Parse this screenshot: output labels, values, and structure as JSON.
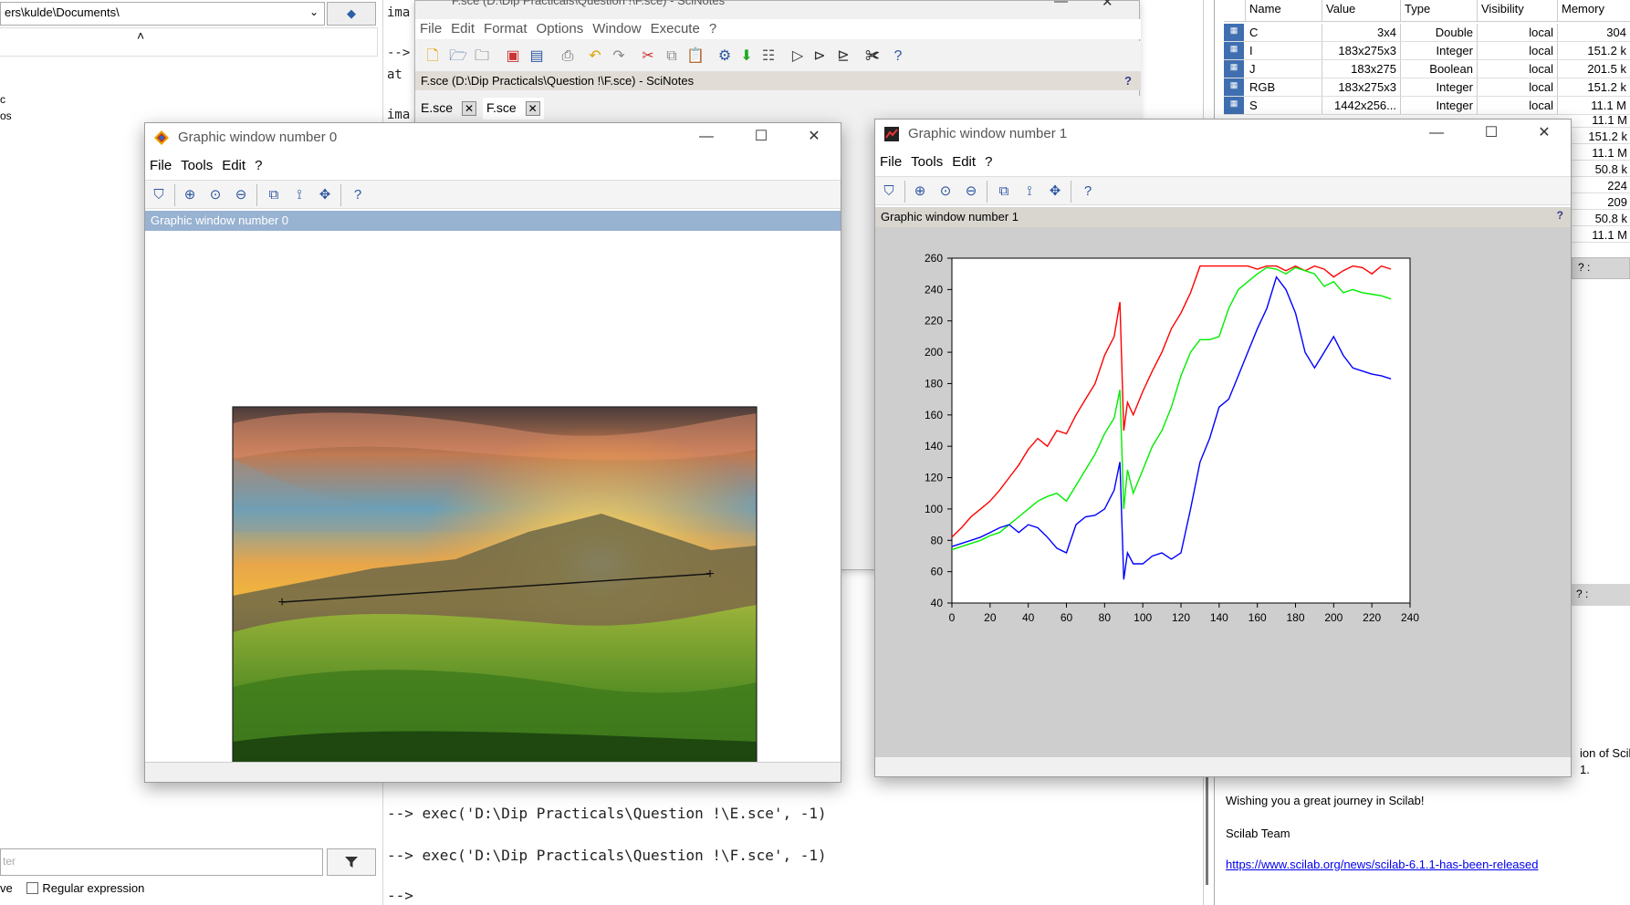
{
  "file_browser": {
    "path": "ers\\kulde\\Documents\\",
    "tree_fragments": [
      "c",
      "os"
    ],
    "filter_placeholder": "ter",
    "case_label_fragment": "ve",
    "regex_label": "Regular expression"
  },
  "console": {
    "top_lines": [
      "ima",
      "-->",
      "at",
      "",
      "ima"
    ],
    "lines": [
      "--> exec('D:\\Dip Practicals\\Question !\\E.sce', -1)",
      "--> exec('D:\\Dip Practicals\\Question !\\F.sce', -1)",
      "-->"
    ]
  },
  "scinotes": {
    "window_title": "F.sce (D:\\Dip Practicals\\Question !\\F.sce) - SciNotes",
    "menu": [
      "File",
      "Edit",
      "Format",
      "Options",
      "Window",
      "Execute",
      "?"
    ],
    "titlebar": "F.sce (D:\\Dip Practicals\\Question !\\F.sce) - SciNotes",
    "help_mark": "?",
    "tabs": [
      "E.sce",
      "F.sce"
    ]
  },
  "variable_browser": {
    "columns": [
      "Name",
      "Value",
      "Type",
      "Visibility",
      "Memory"
    ],
    "rows": [
      {
        "name": "C",
        "value": "3x4",
        "type": "Double",
        "visibility": "local",
        "memory": "304"
      },
      {
        "name": "I",
        "value": "183x275x3",
        "type": "Integer",
        "visibility": "local",
        "memory": "151.2 k"
      },
      {
        "name": "J",
        "value": "183x275",
        "type": "Boolean",
        "visibility": "local",
        "memory": "201.5 k"
      },
      {
        "name": "RGB",
        "value": "183x275x3",
        "type": "Integer",
        "visibility": "local",
        "memory": "151.2 k"
      },
      {
        "name": "S",
        "value": "1442x256...",
        "type": "Integer",
        "visibility": "local",
        "memory": "11.1 M"
      }
    ],
    "hidden_memory": [
      "11.1 M",
      "151.2 k",
      "11.1 M",
      "50.8 k",
      "224",
      "209",
      "50.8 k",
      "11.1 M"
    ],
    "bottom_marks": "? :"
  },
  "news_feed": {
    "fragment1": "ion of Scila",
    "fragment2": "1.",
    "wish": "Wishing you a great journey in Scilab!",
    "signature": "Scilab Team",
    "link": "https://www.scilab.org/news/scilab-6.1.1-has-been-released",
    "titlebar_marks": "? :"
  },
  "graphic_window_0": {
    "title": "Graphic window number 0",
    "menu": [
      "File",
      "Tools",
      "Edit",
      "?"
    ],
    "info": "Graphic window number 0",
    "image_alt": "sunset over grassy hills",
    "profile_line_marker": "+"
  },
  "graphic_window_1": {
    "title": "Graphic window number 1",
    "menu": [
      "File",
      "Tools",
      "Edit",
      "?"
    ],
    "info": "Graphic window number 1",
    "help_mark": "?"
  },
  "chart_data": {
    "type": "line",
    "title": "",
    "xlabel": "",
    "ylabel": "",
    "xlim": [
      0,
      240
    ],
    "ylim": [
      40,
      260
    ],
    "x_ticks": [
      "0",
      "20",
      "40",
      "60",
      "80",
      "100",
      "120",
      "140",
      "160",
      "180",
      "200",
      "220",
      "240"
    ],
    "y_ticks": [
      "40",
      "60",
      "80",
      "100",
      "120",
      "140",
      "160",
      "180",
      "200",
      "220",
      "240",
      "260"
    ],
    "grid": false,
    "series": [
      {
        "color": "#ff0000",
        "x": [
          0,
          5,
          10,
          15,
          20,
          25,
          30,
          35,
          40,
          45,
          50,
          55,
          60,
          65,
          70,
          75,
          80,
          85,
          88,
          90,
          92,
          95,
          100,
          105,
          110,
          115,
          120,
          125,
          130,
          135,
          140,
          145,
          150,
          155,
          160,
          165,
          170,
          175,
          180,
          185,
          190,
          195,
          200,
          205,
          210,
          215,
          220,
          225,
          230
        ],
        "y": [
          82,
          88,
          95,
          100,
          105,
          112,
          120,
          128,
          138,
          145,
          140,
          150,
          148,
          160,
          170,
          180,
          198,
          210,
          232,
          150,
          168,
          160,
          175,
          188,
          200,
          215,
          225,
          238,
          255,
          255,
          255,
          255,
          255,
          255,
          253,
          255,
          255,
          252,
          255,
          252,
          255,
          253,
          248,
          252,
          255,
          254,
          250,
          255,
          253
        ]
      },
      {
        "color": "#00ee00",
        "x": [
          0,
          5,
          10,
          15,
          20,
          25,
          30,
          35,
          40,
          45,
          50,
          55,
          60,
          65,
          70,
          75,
          80,
          85,
          88,
          90,
          92,
          95,
          100,
          105,
          110,
          115,
          120,
          125,
          130,
          135,
          140,
          145,
          150,
          155,
          160,
          165,
          170,
          175,
          180,
          185,
          190,
          195,
          200,
          205,
          210,
          215,
          220,
          225,
          230
        ],
        "y": [
          74,
          76,
          78,
          80,
          83,
          85,
          90,
          95,
          100,
          105,
          108,
          110,
          105,
          115,
          125,
          135,
          148,
          158,
          176,
          100,
          125,
          110,
          125,
          140,
          150,
          165,
          185,
          200,
          208,
          208,
          210,
          228,
          240,
          245,
          250,
          254,
          253,
          250,
          254,
          252,
          250,
          242,
          245,
          238,
          240,
          238,
          237,
          236,
          234
        ]
      },
      {
        "color": "#0000ff",
        "x": [
          0,
          5,
          10,
          15,
          20,
          25,
          30,
          35,
          40,
          45,
          50,
          55,
          60,
          65,
          70,
          75,
          80,
          85,
          88,
          90,
          92,
          95,
          100,
          105,
          110,
          115,
          120,
          125,
          130,
          135,
          140,
          145,
          150,
          155,
          160,
          165,
          170,
          175,
          180,
          185,
          190,
          195,
          200,
          205,
          210,
          215,
          220,
          225,
          230
        ],
        "y": [
          76,
          78,
          80,
          82,
          85,
          88,
          90,
          85,
          90,
          88,
          82,
          75,
          72,
          90,
          95,
          96,
          100,
          112,
          130,
          55,
          72,
          65,
          65,
          70,
          72,
          68,
          72,
          100,
          130,
          145,
          165,
          170,
          185,
          200,
          215,
          228,
          248,
          240,
          225,
          200,
          190,
          200,
          210,
          198,
          190,
          188,
          186,
          185,
          183
        ]
      }
    ]
  }
}
